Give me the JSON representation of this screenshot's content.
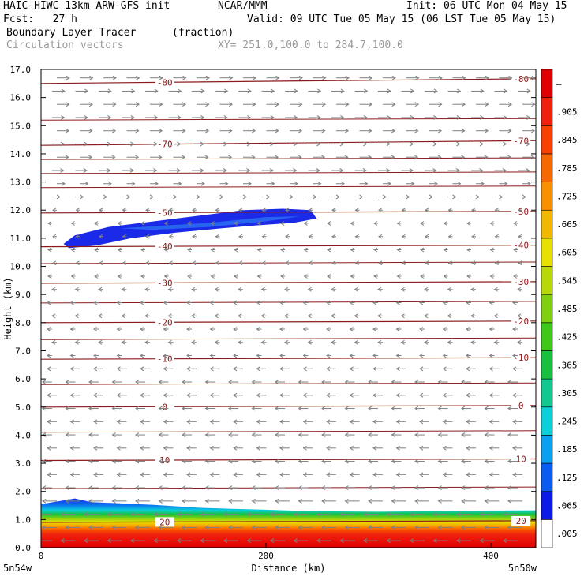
{
  "header": {
    "line1_left": "HAIC-HIWC 13km ARW-GFS init",
    "line1_mid": "NCAR/MMM",
    "line1_right": "Init: 06 UTC Mon 04 May 15",
    "line2_left": "Fcst:   27 h",
    "line2_right": "Valid: 09 UTC Tue 05 May 15 (06 LST Tue 05 May 15)",
    "field_name": "Boundary Layer Tracer",
    "field_units": "(fraction)",
    "vector_label": "Circulation vectors",
    "xy_label": "XY= 251.0,100.0 to 284.7,100.0"
  },
  "colors": {
    "contour": "#8b1a1a",
    "vector": "#808080",
    "background": "#ffffff"
  },
  "chart_data": {
    "type": "cross-section",
    "xlabel": "Distance (km)",
    "ylabel": "Height (km)",
    "xlim": [
      0,
      440
    ],
    "ylim": [
      0,
      17
    ],
    "x_ticks": [
      "0",
      "200",
      "400"
    ],
    "x_end_labels": {
      "left": "5n54w",
      "right": "5n50w"
    },
    "y_ticks": [
      "0.0",
      "1.0",
      "2.0",
      "3.0",
      "4.0",
      "5.0",
      "6.0",
      "7.0",
      "8.0",
      "9.0",
      "10.0",
      "11.0",
      "12.0",
      "13.0",
      "14.0",
      "15.0",
      "16.0",
      "17.0"
    ],
    "colorbar": {
      "labels": [
        ".005",
        ".065",
        ".125",
        ".185",
        ".245",
        ".305",
        ".365",
        ".425",
        ".485",
        ".545",
        ".605",
        ".665",
        ".725",
        ".785",
        ".845",
        ".905",
        "–"
      ],
      "colors": [
        "#ffffff",
        "#0c1ae8",
        "#0a5cf0",
        "#0aa0f2",
        "#0ad0d8",
        "#10c890",
        "#18c040",
        "#40c818",
        "#80d010",
        "#b8d808",
        "#e8e000",
        "#f0b800",
        "#f89000",
        "#f86800",
        "#f84000",
        "#f02010",
        "#e00000"
      ]
    },
    "temperature_contours": [
      {
        "label": "20",
        "y_km": 0.9
      },
      {
        "label": "10",
        "y_km": 3.1
      },
      {
        "label": "0",
        "y_km": 5.0
      },
      {
        "label": "-10",
        "y_km": 6.7
      },
      {
        "label": "-20",
        "y_km": 8.0
      },
      {
        "label": "-30",
        "y_km": 9.4
      },
      {
        "label": "-40",
        "y_km": 10.7
      },
      {
        "label": "-50",
        "y_km": 11.9
      },
      {
        "label": "-70",
        "y_km": 14.3
      },
      {
        "label": "-80",
        "y_km": 16.5
      }
    ],
    "tracer_regions": [
      {
        "name": "boundary layer",
        "x_km": [
          0,
          440
        ],
        "y_km": [
          0,
          1.8
        ],
        "max_fraction": 0.95
      },
      {
        "name": "upper plume",
        "x_km": [
          20,
          245
        ],
        "y_km": [
          10.8,
          12.1
        ],
        "max_fraction": 0.1
      }
    ]
  }
}
